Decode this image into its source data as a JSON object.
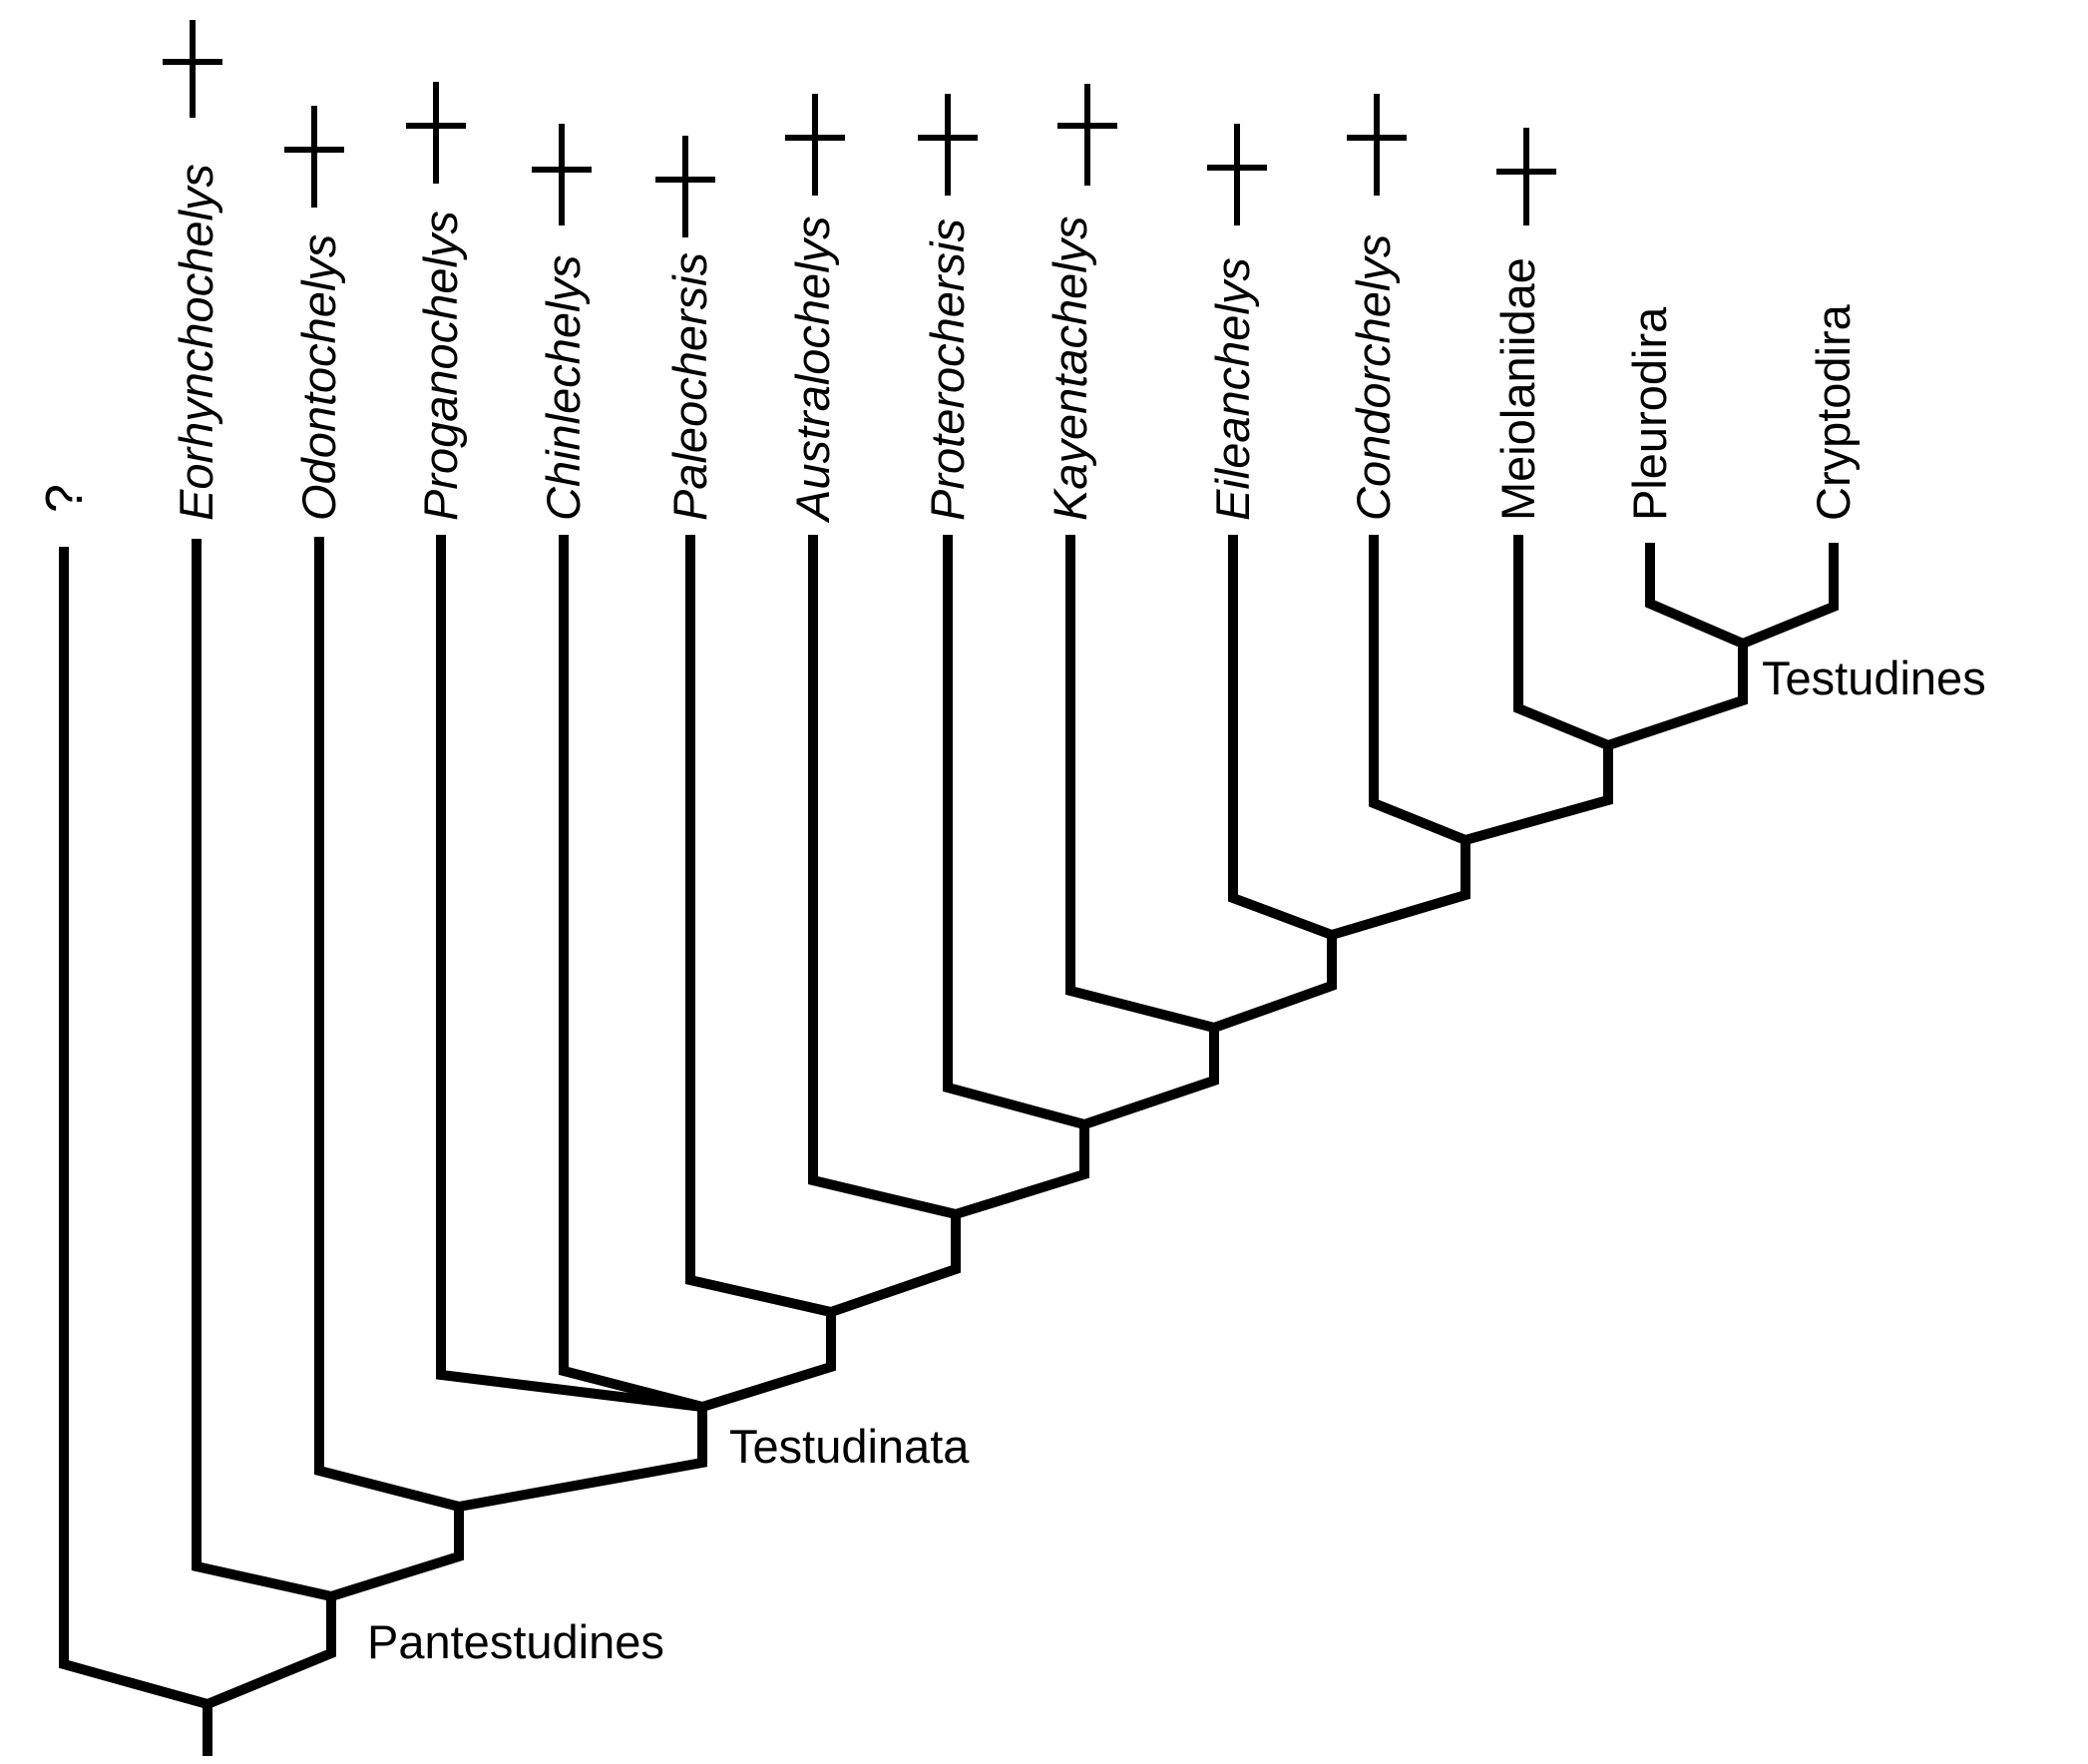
{
  "tree": {
    "unknown_label": "?",
    "taxa": [
      {
        "name": "Eorhynchochelys",
        "italic": true,
        "extinct": true
      },
      {
        "name": "Odontochelys",
        "italic": true,
        "extinct": true
      },
      {
        "name": "Proganochelys",
        "italic": true,
        "extinct": true
      },
      {
        "name": "Chinlechelys",
        "italic": true,
        "extinct": true
      },
      {
        "name": "Paleochersis",
        "italic": true,
        "extinct": true
      },
      {
        "name": "Australochelys",
        "italic": true,
        "extinct": true
      },
      {
        "name": "Proterochersis",
        "italic": true,
        "extinct": true
      },
      {
        "name": "Kayentachelys",
        "italic": true,
        "extinct": true
      },
      {
        "name": "Eileanchelys",
        "italic": true,
        "extinct": true
      },
      {
        "name": "Condorchelys",
        "italic": true,
        "extinct": true
      },
      {
        "name": "Meiolaniidae",
        "italic": false,
        "extinct": true
      },
      {
        "name": "Pleurodira",
        "italic": false,
        "extinct": false
      },
      {
        "name": "Cryptodira",
        "italic": false,
        "extinct": false
      }
    ],
    "clades": {
      "pantestudines": "Pantestudines",
      "testudinata": "Testudinata",
      "testudines": "Testudines"
    }
  },
  "colors": {
    "line": "#000000",
    "background": "#ffffff"
  }
}
